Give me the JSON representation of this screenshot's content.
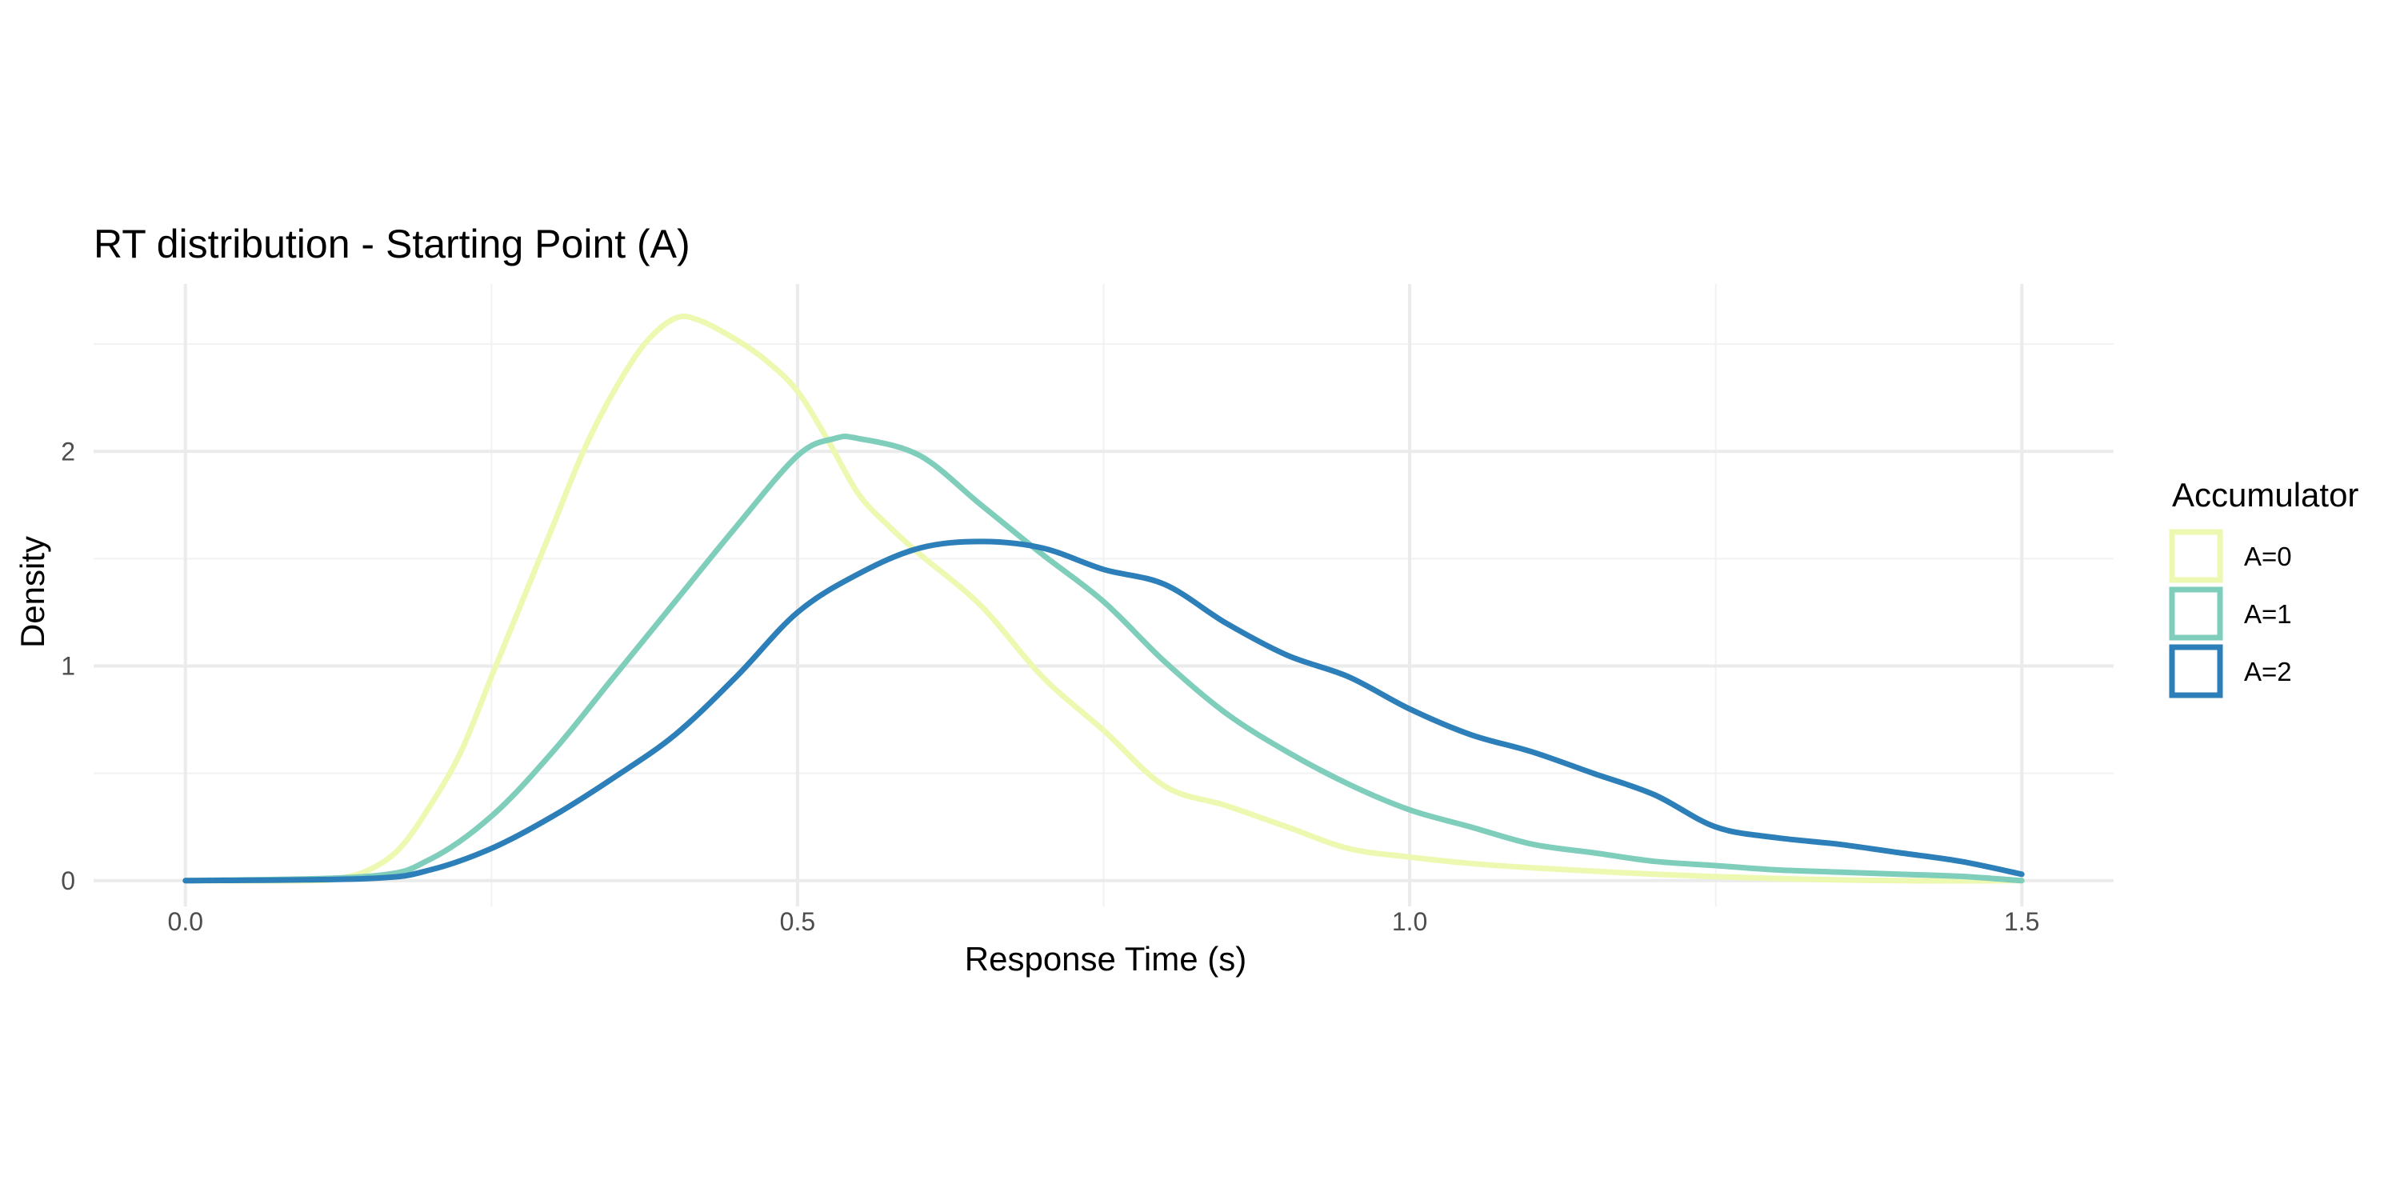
{
  "chart_data": {
    "type": "line",
    "title": "RT distribution - Starting Point (A)",
    "xlabel": "Response Time (s)",
    "ylabel": "Density",
    "xlim": [
      -0.075,
      1.575
    ],
    "ylim": [
      -0.12,
      2.78
    ],
    "x_ticks": [
      0.0,
      0.5,
      1.0,
      1.5
    ],
    "x_tick_labels": [
      "0.0",
      "0.5",
      "1.0",
      "1.5"
    ],
    "x_minor_ticks": [
      0.25,
      0.75,
      1.25
    ],
    "y_ticks": [
      0,
      1,
      2
    ],
    "y_tick_labels": [
      "0",
      "1",
      "2"
    ],
    "y_minor_ticks": [
      0.5,
      1.5,
      2.5
    ],
    "grid": true,
    "legend": {
      "title": "Accumulator",
      "position": "right"
    },
    "series": [
      {
        "name": "A=0",
        "color": "#edf8b1",
        "x": [
          0.0,
          0.1,
          0.125,
          0.15,
          0.175,
          0.2,
          0.225,
          0.25,
          0.275,
          0.3,
          0.325,
          0.35,
          0.375,
          0.4,
          0.42,
          0.45,
          0.475,
          0.5,
          0.525,
          0.55,
          0.575,
          0.6,
          0.65,
          0.7,
          0.75,
          0.8,
          0.85,
          0.9,
          0.95,
          1.0,
          1.05,
          1.1,
          1.2,
          1.3,
          1.4,
          1.5
        ],
        "y": [
          0.0,
          0.0,
          0.01,
          0.05,
          0.15,
          0.35,
          0.6,
          0.95,
          1.3,
          1.65,
          2.0,
          2.28,
          2.5,
          2.62,
          2.61,
          2.52,
          2.42,
          2.28,
          2.05,
          1.8,
          1.65,
          1.52,
          1.28,
          0.95,
          0.7,
          0.44,
          0.35,
          0.25,
          0.15,
          0.11,
          0.08,
          0.06,
          0.03,
          0.01,
          0.0,
          0.0
        ]
      },
      {
        "name": "A=1",
        "color": "#7fcdbb",
        "x": [
          0.0,
          0.15,
          0.2,
          0.25,
          0.3,
          0.35,
          0.4,
          0.45,
          0.5,
          0.53,
          0.55,
          0.6,
          0.65,
          0.7,
          0.75,
          0.8,
          0.85,
          0.9,
          0.95,
          1.0,
          1.05,
          1.1,
          1.15,
          1.2,
          1.25,
          1.3,
          1.35,
          1.4,
          1.45,
          1.5
        ],
        "y": [
          0.0,
          0.02,
          0.1,
          0.3,
          0.6,
          0.95,
          1.3,
          1.65,
          1.98,
          2.06,
          2.06,
          1.98,
          1.75,
          1.52,
          1.3,
          1.02,
          0.78,
          0.6,
          0.45,
          0.33,
          0.25,
          0.17,
          0.13,
          0.09,
          0.07,
          0.05,
          0.04,
          0.03,
          0.02,
          0.0
        ]
      },
      {
        "name": "A=2",
        "color": "#2c7fb8",
        "x": [
          0.0,
          0.15,
          0.2,
          0.25,
          0.3,
          0.35,
          0.4,
          0.45,
          0.5,
          0.55,
          0.6,
          0.65,
          0.7,
          0.75,
          0.8,
          0.85,
          0.9,
          0.95,
          1.0,
          1.05,
          1.1,
          1.15,
          1.2,
          1.25,
          1.3,
          1.35,
          1.4,
          1.45,
          1.5
        ],
        "y": [
          0.0,
          0.01,
          0.05,
          0.15,
          0.3,
          0.48,
          0.68,
          0.95,
          1.25,
          1.43,
          1.55,
          1.58,
          1.55,
          1.45,
          1.38,
          1.2,
          1.05,
          0.95,
          0.8,
          0.68,
          0.6,
          0.5,
          0.4,
          0.25,
          0.2,
          0.17,
          0.13,
          0.09,
          0.03
        ]
      }
    ]
  }
}
